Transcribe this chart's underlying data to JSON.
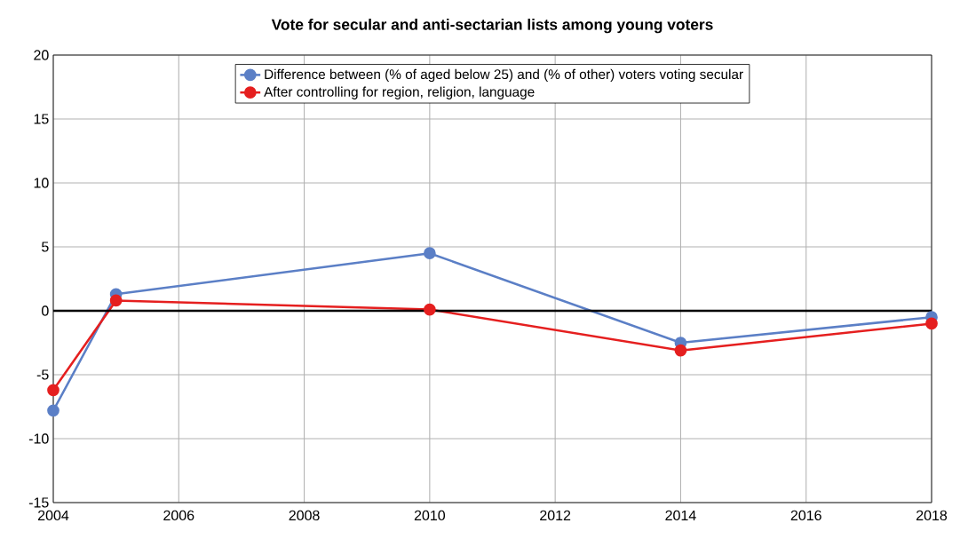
{
  "chart_data": {
    "type": "line",
    "title": "Vote for secular and anti-sectarian lists among young voters",
    "x": [
      2004,
      2005,
      2010,
      2014,
      2018
    ],
    "series": [
      {
        "name": "Difference between (% of aged below 25) and (% of other) voters voting secular",
        "color": "#5b7fc6",
        "values": [
          -7.8,
          1.3,
          4.5,
          -2.5,
          -0.5
        ]
      },
      {
        "name": "After controlling for region, religion, language",
        "color": "#e51f1f",
        "values": [
          -6.2,
          0.8,
          0.1,
          -3.1,
          -1.0
        ]
      }
    ],
    "xlim": [
      2004,
      2018
    ],
    "xticks": [
      2004,
      2006,
      2008,
      2010,
      2012,
      2014,
      2016,
      2018
    ],
    "ylim": [
      -15,
      20
    ],
    "yticks": [
      -15,
      -10,
      -5,
      0,
      5,
      10,
      15,
      20
    ],
    "ref_lines": [
      {
        "axis": "y",
        "value": 0,
        "color": "#000000"
      }
    ],
    "grid": true,
    "legend": "top",
    "marker": "circle",
    "line_style": "solid"
  }
}
